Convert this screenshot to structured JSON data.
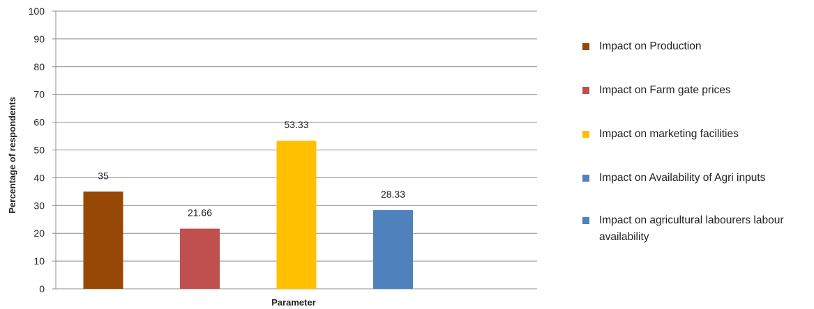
{
  "chart_data": {
    "type": "bar",
    "xlabel": "Parameter",
    "ylabel": "Percentage of respondents",
    "ylim": [
      0,
      100
    ],
    "yticks": [
      "0",
      "10",
      "20",
      "30",
      "40",
      "50",
      "60",
      "70",
      "80",
      "90",
      "100"
    ],
    "grid": true,
    "legend_position": "right",
    "series": [
      {
        "name": "Impact on Production",
        "value": 35,
        "label": "35",
        "color": "#974706"
      },
      {
        "name": "Impact on Farm gate prices",
        "value": 21.66,
        "label": "21.66",
        "color": "#C0504D"
      },
      {
        "name": "Impact on  marketing facilities",
        "value": 53.33,
        "label": "53.33",
        "color": "#FFC000"
      },
      {
        "name": "Impact on Availability of Agri  inputs",
        "value": 28.33,
        "label": "28.33",
        "color": "#4F81BD"
      },
      {
        "name": "Impact on agricultural labourers labour availability",
        "value": null,
        "label": "",
        "color": "#4F81BD"
      }
    ]
  }
}
